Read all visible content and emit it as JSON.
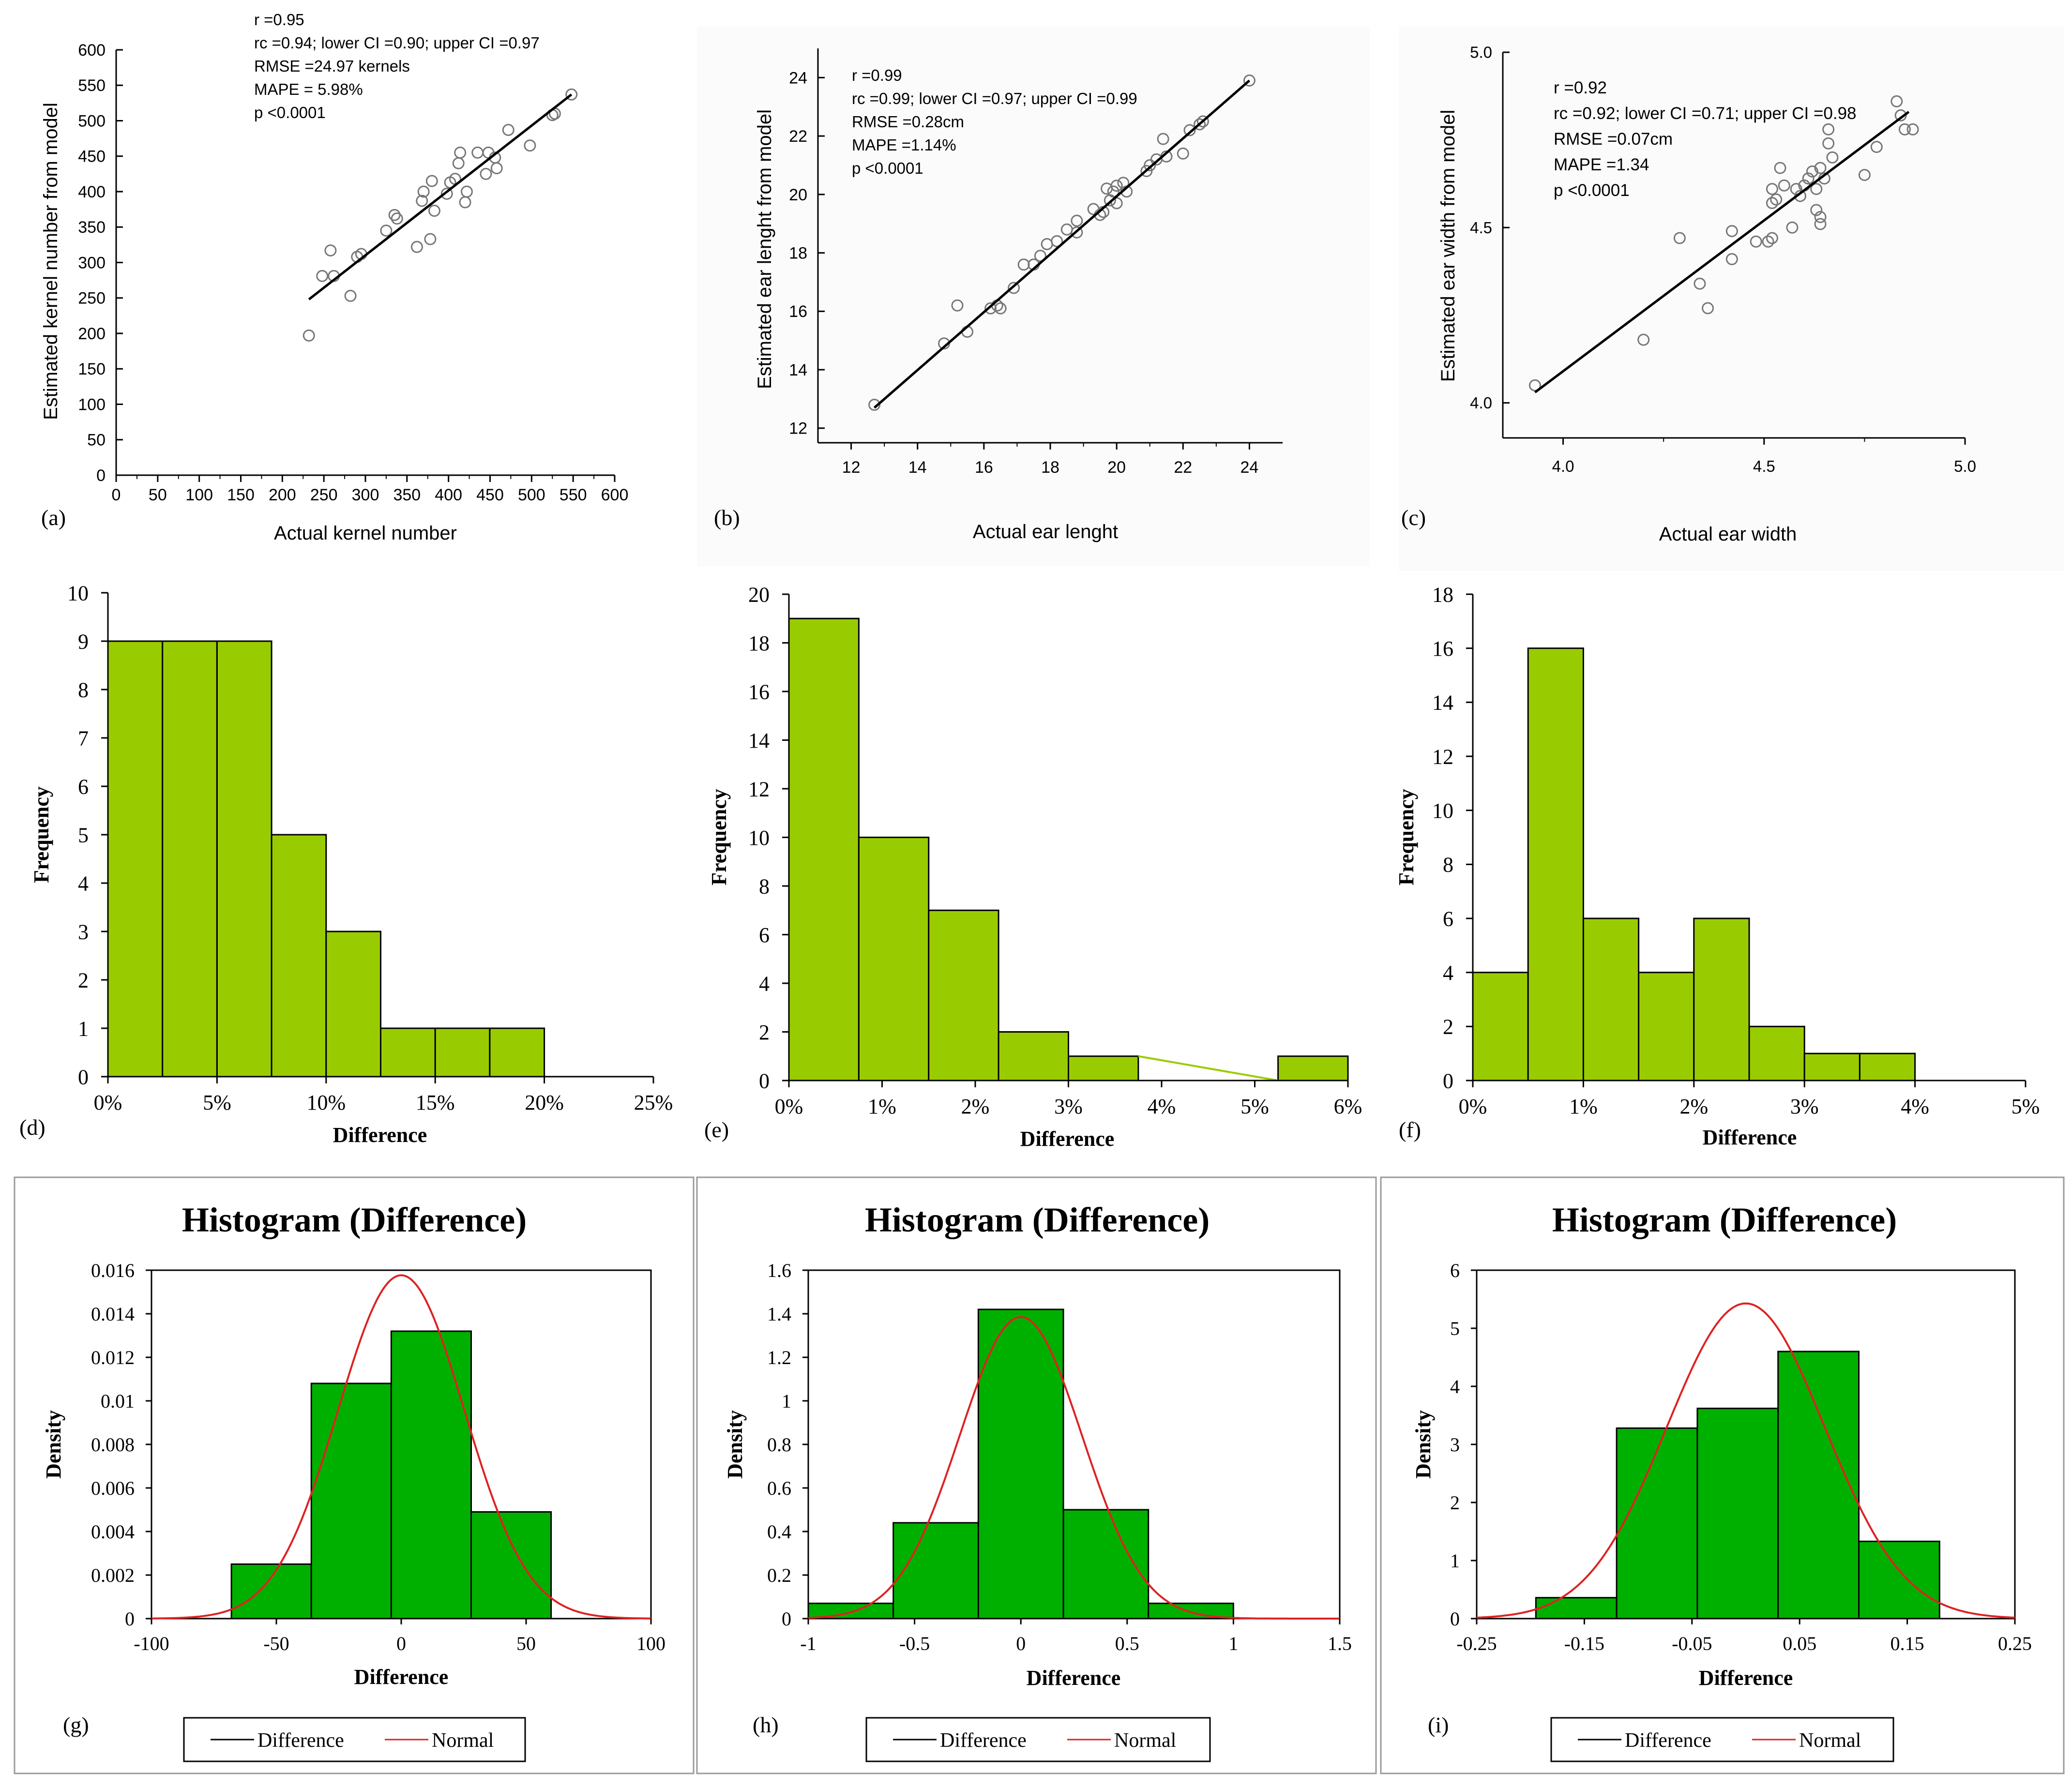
{
  "colors": {
    "bar_fill": "#99cc00",
    "density_bar_fill": "#00b000",
    "normal_curve": "#dd2222",
    "axis": "#000000",
    "point": "#777777"
  },
  "chart_data": [
    {
      "id": "a",
      "type": "scatter",
      "panel_label": "(a)",
      "xlabel": "Actual kernel number",
      "ylabel": "Estimated kernel number from model",
      "xlim": [
        0,
        600
      ],
      "ylim": [
        0,
        600
      ],
      "xticks": [
        "0",
        "50",
        "100",
        "150",
        "200",
        "250",
        "300",
        "350",
        "400",
        "450",
        "500",
        "550",
        "600"
      ],
      "yticks": [
        "0",
        "50",
        "100",
        "150",
        "200",
        "250",
        "300",
        "350",
        "400",
        "450",
        "500",
        "550",
        "600"
      ],
      "stats": [
        "r =0.95",
        "rc =0.94; lower CI =0.90; upper CI =0.97",
        "RMSE =24.97 kernels",
        "MAPE = 5.98%",
        "p <0.0001"
      ],
      "fit_line": {
        "x": [
          232,
          548
        ],
        "y": [
          248,
          537
        ]
      },
      "points": [
        [
          232,
          197
        ],
        [
          248,
          281
        ],
        [
          258,
          317
        ],
        [
          262,
          281
        ],
        [
          282,
          253
        ],
        [
          290,
          308
        ],
        [
          295,
          312
        ],
        [
          325,
          345
        ],
        [
          335,
          367
        ],
        [
          338,
          362
        ],
        [
          362,
          322
        ],
        [
          368,
          387
        ],
        [
          370,
          400
        ],
        [
          378,
          333
        ],
        [
          380,
          415
        ],
        [
          383,
          373
        ],
        [
          398,
          397
        ],
        [
          402,
          413
        ],
        [
          408,
          418
        ],
        [
          412,
          440
        ],
        [
          414,
          455
        ],
        [
          420,
          385
        ],
        [
          422,
          400
        ],
        [
          435,
          455
        ],
        [
          445,
          425
        ],
        [
          448,
          455
        ],
        [
          456,
          448
        ],
        [
          458,
          433
        ],
        [
          472,
          487
        ],
        [
          498,
          465
        ],
        [
          525,
          508
        ],
        [
          528,
          510
        ],
        [
          548,
          537
        ]
      ]
    },
    {
      "id": "b",
      "type": "scatter",
      "panel_label": "(b)",
      "xlabel": "Actual ear lenght",
      "ylabel": "Estimated ear lenght from model",
      "xlim": [
        11,
        25
      ],
      "ylim": [
        11.5,
        25
      ],
      "xticks": [
        "12",
        "14",
        "16",
        "18",
        "20",
        "22",
        "24"
      ],
      "yticks": [
        "12",
        "14",
        "16",
        "18",
        "20",
        "22",
        "24"
      ],
      "stats": [
        "r =0.99",
        "rc =0.99; lower CI =0.97; upper CI =0.99",
        "RMSE =0.28cm",
        "MAPE =1.14%",
        "p <0.0001"
      ],
      "fit_line": {
        "x": [
          12.7,
          24.0
        ],
        "y": [
          12.7,
          23.9
        ]
      },
      "points": [
        [
          12.7,
          12.8
        ],
        [
          14.8,
          14.9
        ],
        [
          15.2,
          16.2
        ],
        [
          15.5,
          15.3
        ],
        [
          16.2,
          16.1
        ],
        [
          16.4,
          16.2
        ],
        [
          16.5,
          16.1
        ],
        [
          16.9,
          16.8
        ],
        [
          17.2,
          17.6
        ],
        [
          17.5,
          17.6
        ],
        [
          17.7,
          17.9
        ],
        [
          17.9,
          18.3
        ],
        [
          18.2,
          18.4
        ],
        [
          18.5,
          18.8
        ],
        [
          18.8,
          18.7
        ],
        [
          18.8,
          19.1
        ],
        [
          19.3,
          19.5
        ],
        [
          19.5,
          19.3
        ],
        [
          19.6,
          19.4
        ],
        [
          19.7,
          20.2
        ],
        [
          19.8,
          19.8
        ],
        [
          19.9,
          20.1
        ],
        [
          20.0,
          19.7
        ],
        [
          20.0,
          20.3
        ],
        [
          20.2,
          20.4
        ],
        [
          20.3,
          20.1
        ],
        [
          20.9,
          20.8
        ],
        [
          21.0,
          21.0
        ],
        [
          21.2,
          21.2
        ],
        [
          21.4,
          21.9
        ],
        [
          21.5,
          21.3
        ],
        [
          22.0,
          21.4
        ],
        [
          22.2,
          22.2
        ],
        [
          22.5,
          22.4
        ],
        [
          22.6,
          22.5
        ],
        [
          24.0,
          23.9
        ]
      ]
    },
    {
      "id": "c",
      "type": "scatter",
      "panel_label": "(c)",
      "xlabel": "Actual ear width",
      "ylabel": "Estimated ear width from model",
      "xlim": [
        3.85,
        5.0
      ],
      "ylim": [
        3.9,
        5.0
      ],
      "xticks": [
        "4.0",
        "4.5",
        "5.0"
      ],
      "yticks": [
        "4.0",
        "4.5",
        "5.0"
      ],
      "stats": [
        "r =0.92",
        "rc =0.92; lower CI =0.71; upper CI =0.98",
        "RMSE =0.07cm",
        "MAPE =1.34",
        "p <0.0001"
      ],
      "fit_line": {
        "x": [
          3.93,
          4.86
        ],
        "y": [
          4.03,
          4.83
        ]
      },
      "points": [
        [
          3.93,
          4.05
        ],
        [
          4.2,
          4.18
        ],
        [
          4.29,
          4.47
        ],
        [
          4.34,
          4.34
        ],
        [
          4.36,
          4.27
        ],
        [
          4.42,
          4.41
        ],
        [
          4.42,
          4.49
        ],
        [
          4.48,
          4.46
        ],
        [
          4.51,
          4.46
        ],
        [
          4.52,
          4.47
        ],
        [
          4.52,
          4.57
        ],
        [
          4.52,
          4.61
        ],
        [
          4.53,
          4.58
        ],
        [
          4.54,
          4.67
        ],
        [
          4.55,
          4.62
        ],
        [
          4.57,
          4.5
        ],
        [
          4.58,
          4.61
        ],
        [
          4.59,
          4.59
        ],
        [
          4.6,
          4.62
        ],
        [
          4.61,
          4.64
        ],
        [
          4.62,
          4.66
        ],
        [
          4.63,
          4.61
        ],
        [
          4.63,
          4.55
        ],
        [
          4.64,
          4.51
        ],
        [
          4.64,
          4.53
        ],
        [
          4.64,
          4.67
        ],
        [
          4.65,
          4.64
        ],
        [
          4.66,
          4.74
        ],
        [
          4.66,
          4.78
        ],
        [
          4.67,
          4.7
        ],
        [
          4.75,
          4.65
        ],
        [
          4.78,
          4.73
        ],
        [
          4.83,
          4.86
        ],
        [
          4.84,
          4.82
        ],
        [
          4.85,
          4.78
        ],
        [
          4.87,
          4.78
        ]
      ]
    },
    {
      "id": "d",
      "type": "bar",
      "panel_label": "(d)",
      "xlabel": "Difference",
      "ylabel": "Frequency",
      "xlim": [
        0,
        25
      ],
      "ylim": [
        0,
        10
      ],
      "xticks": [
        "0%",
        "5%",
        "10%",
        "15%",
        "20%",
        "25%"
      ],
      "yticks": [
        "0",
        "1",
        "2",
        "3",
        "4",
        "5",
        "6",
        "7",
        "8",
        "9",
        "10"
      ],
      "bin_edges": [
        0,
        2.5,
        5,
        7.5,
        10,
        12.5,
        15,
        17.5,
        20
      ],
      "values": [
        9,
        9,
        9,
        5,
        3,
        1,
        1,
        1
      ]
    },
    {
      "id": "e",
      "type": "bar",
      "panel_label": "(e)",
      "xlabel": "Difference",
      "ylabel": "Frequency",
      "xlim": [
        0,
        6
      ],
      "ylim": [
        0,
        20
      ],
      "xticks": [
        "0%",
        "1%",
        "2%",
        "3%",
        "4%",
        "5%",
        "6%"
      ],
      "yticks": [
        "0",
        "2",
        "4",
        "6",
        "8",
        "10",
        "12",
        "14",
        "16",
        "18",
        "20"
      ],
      "bin_edges": [
        0,
        0.75,
        1.5,
        2.25,
        3,
        3.75,
        4.5,
        5.25,
        6
      ],
      "values": [
        19,
        10,
        7,
        2,
        1,
        0,
        0,
        1
      ]
    },
    {
      "id": "f",
      "type": "bar",
      "panel_label": "(f)",
      "xlabel": "Difference",
      "ylabel": "Frequency",
      "xlim": [
        0,
        5
      ],
      "ylim": [
        0,
        18
      ],
      "xticks": [
        "0%",
        "1%",
        "2%",
        "3%",
        "4%",
        "5%"
      ],
      "yticks": [
        "0",
        "2",
        "4",
        "6",
        "8",
        "10",
        "12",
        "14",
        "16",
        "18"
      ],
      "bin_edges": [
        0,
        0.5,
        1,
        1.5,
        2,
        2.5,
        3,
        3.5,
        4
      ],
      "values": [
        4,
        16,
        6,
        4,
        6,
        2,
        1,
        1
      ]
    },
    {
      "id": "g",
      "type": "bar",
      "panel_label": "(g)",
      "title": "Histogram (Difference)",
      "xlabel": "Difference",
      "ylabel": "Density",
      "xlim": [
        -100,
        100
      ],
      "ylim": [
        0,
        0.016
      ],
      "xticks": [
        "-100",
        "-50",
        "0",
        "50",
        "100"
      ],
      "yticks": [
        "0",
        "0.002",
        "0.004",
        "0.006",
        "0.008",
        "0.01",
        "0.012",
        "0.014",
        "0.016"
      ],
      "bin_edges": [
        -68,
        -36,
        -4,
        28,
        60
      ],
      "values": [
        0.0025,
        0.0108,
        0.0132,
        0.0049
      ],
      "normal": {
        "mean": 0,
        "sd": 25.3
      },
      "legend": [
        "Difference",
        "Normal"
      ]
    },
    {
      "id": "h",
      "type": "bar",
      "panel_label": "(h)",
      "title": "Histogram (Difference)",
      "xlabel": "Difference",
      "ylabel": "Density",
      "xlim": [
        -1,
        1.5
      ],
      "ylim": [
        0,
        1.6
      ],
      "xticks": [
        "-1",
        "-0.5",
        "0",
        "0.5",
        "1",
        "1.5"
      ],
      "yticks": [
        "0",
        "0.2",
        "0.4",
        "0.6",
        "0.8",
        "1",
        "1.2",
        "1.4",
        "1.6"
      ],
      "bin_edges": [
        -1,
        -0.6,
        -0.2,
        0.2,
        0.6,
        1.0
      ],
      "values": [
        0.07,
        0.44,
        1.42,
        0.5,
        0.07
      ],
      "normal": {
        "mean": 0,
        "sd": 0.288
      },
      "legend": [
        "Difference",
        "Normal"
      ]
    },
    {
      "id": "i",
      "type": "bar",
      "panel_label": "(i)",
      "title": "Histogram (Difference)",
      "xlabel": "Difference",
      "ylabel": "Density",
      "xlim": [
        -0.25,
        0.25
      ],
      "ylim": [
        0,
        6
      ],
      "xticks": [
        "-0.25",
        "-0.15",
        "-0.05",
        "0.05",
        "0.15",
        "0.25"
      ],
      "yticks": [
        "0",
        "1",
        "2",
        "3",
        "4",
        "5",
        "6"
      ],
      "bin_edges": [
        -0.195,
        -0.12,
        -0.045,
        0.03,
        0.105,
        0.18
      ],
      "values": [
        0.36,
        3.28,
        3.62,
        4.6,
        1.33
      ],
      "normal": {
        "mean": 0,
        "sd": 0.0735
      },
      "legend": [
        "Difference",
        "Normal"
      ]
    }
  ]
}
